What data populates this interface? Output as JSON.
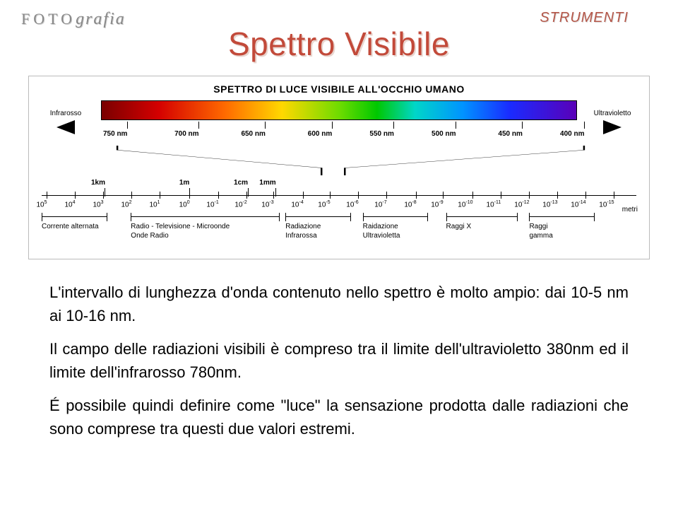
{
  "header": {
    "logo_caps": "FOTO",
    "logo_script": "grafia",
    "section": "STRUMENTI"
  },
  "title": "Spettro Visibile",
  "diagram": {
    "heading": "SPETTRO DI LUCE VISIBILE ALL'OCCHIO UMANO",
    "left_arrow_label": "Infrarosso",
    "right_arrow_label": "Ultravioletto",
    "nm_ticks": [
      {
        "label": "750 nm",
        "pct": 3
      },
      {
        "label": "700 nm",
        "pct": 18
      },
      {
        "label": "650 nm",
        "pct": 32
      },
      {
        "label": "600 nm",
        "pct": 46
      },
      {
        "label": "550 nm",
        "pct": 59
      },
      {
        "label": "500 nm",
        "pct": 72
      },
      {
        "label": "450 nm",
        "pct": 86
      },
      {
        "label": "400 nm",
        "pct": 99
      }
    ],
    "bracket_left_pct": 48,
    "bracket_right_pct": 51,
    "length_ticks": [
      {
        "label": "1km",
        "pct": 9.5
      },
      {
        "label": "1m",
        "pct": 24
      },
      {
        "label": "1cm",
        "pct": 33.5
      },
      {
        "label": "1mm",
        "pct": 38
      }
    ],
    "em_ticks": [
      {
        "exp": "5",
        "pct": 0
      },
      {
        "exp": "4",
        "pct": 4.75
      },
      {
        "exp": "3",
        "pct": 9.5
      },
      {
        "exp": "2",
        "pct": 14.25
      },
      {
        "exp": "1",
        "pct": 19
      },
      {
        "exp": "0",
        "pct": 24
      },
      {
        "exp": "-1",
        "pct": 28.75
      },
      {
        "exp": "-2",
        "pct": 33.5
      },
      {
        "exp": "-3",
        "pct": 38
      },
      {
        "exp": "-4",
        "pct": 43
      },
      {
        "exp": "-5",
        "pct": 47.5
      },
      {
        "exp": "-6",
        "pct": 52.25
      },
      {
        "exp": "-7",
        "pct": 57
      },
      {
        "exp": "-8",
        "pct": 62
      },
      {
        "exp": "-9",
        "pct": 66.5
      },
      {
        "exp": "-10",
        "pct": 71.25
      },
      {
        "exp": "-11",
        "pct": 76
      },
      {
        "exp": "-12",
        "pct": 80.75
      },
      {
        "exp": "-13",
        "pct": 85.5
      },
      {
        "exp": "-14",
        "pct": 90.25
      },
      {
        "exp": "-15",
        "pct": 95
      }
    ],
    "metri_label": "metri",
    "regions": [
      {
        "label": "Corrente alternata",
        "left_pct": 0,
        "right_pct": 11
      },
      {
        "label": "Radio - Televisione - Microonde\nOnde Radio",
        "left_pct": 15,
        "right_pct": 40
      },
      {
        "label": "Radiazione\nInfrarossa",
        "left_pct": 41,
        "right_pct": 52
      },
      {
        "label": "Raidazione\nUltravioletta",
        "left_pct": 54,
        "right_pct": 65
      },
      {
        "label": "Raggi X",
        "left_pct": 68,
        "right_pct": 80
      },
      {
        "label": "Raggi\ngamma",
        "left_pct": 82,
        "right_pct": 93
      }
    ]
  },
  "paragraphs": [
    "L'intervallo di lunghezza d'onda contenuto nello spettro è molto ampio: dai 10-5 nm ai 10-16 nm.",
    "Il campo delle radiazioni visibili è compreso tra il limite dell'ultravioletto 380nm ed il limite dell'infrarosso 780nm.",
    "É possibile quindi definire come \"luce\" la sensazione prodotta dalle radiazioni che sono comprese tra questi due valori estremi."
  ]
}
